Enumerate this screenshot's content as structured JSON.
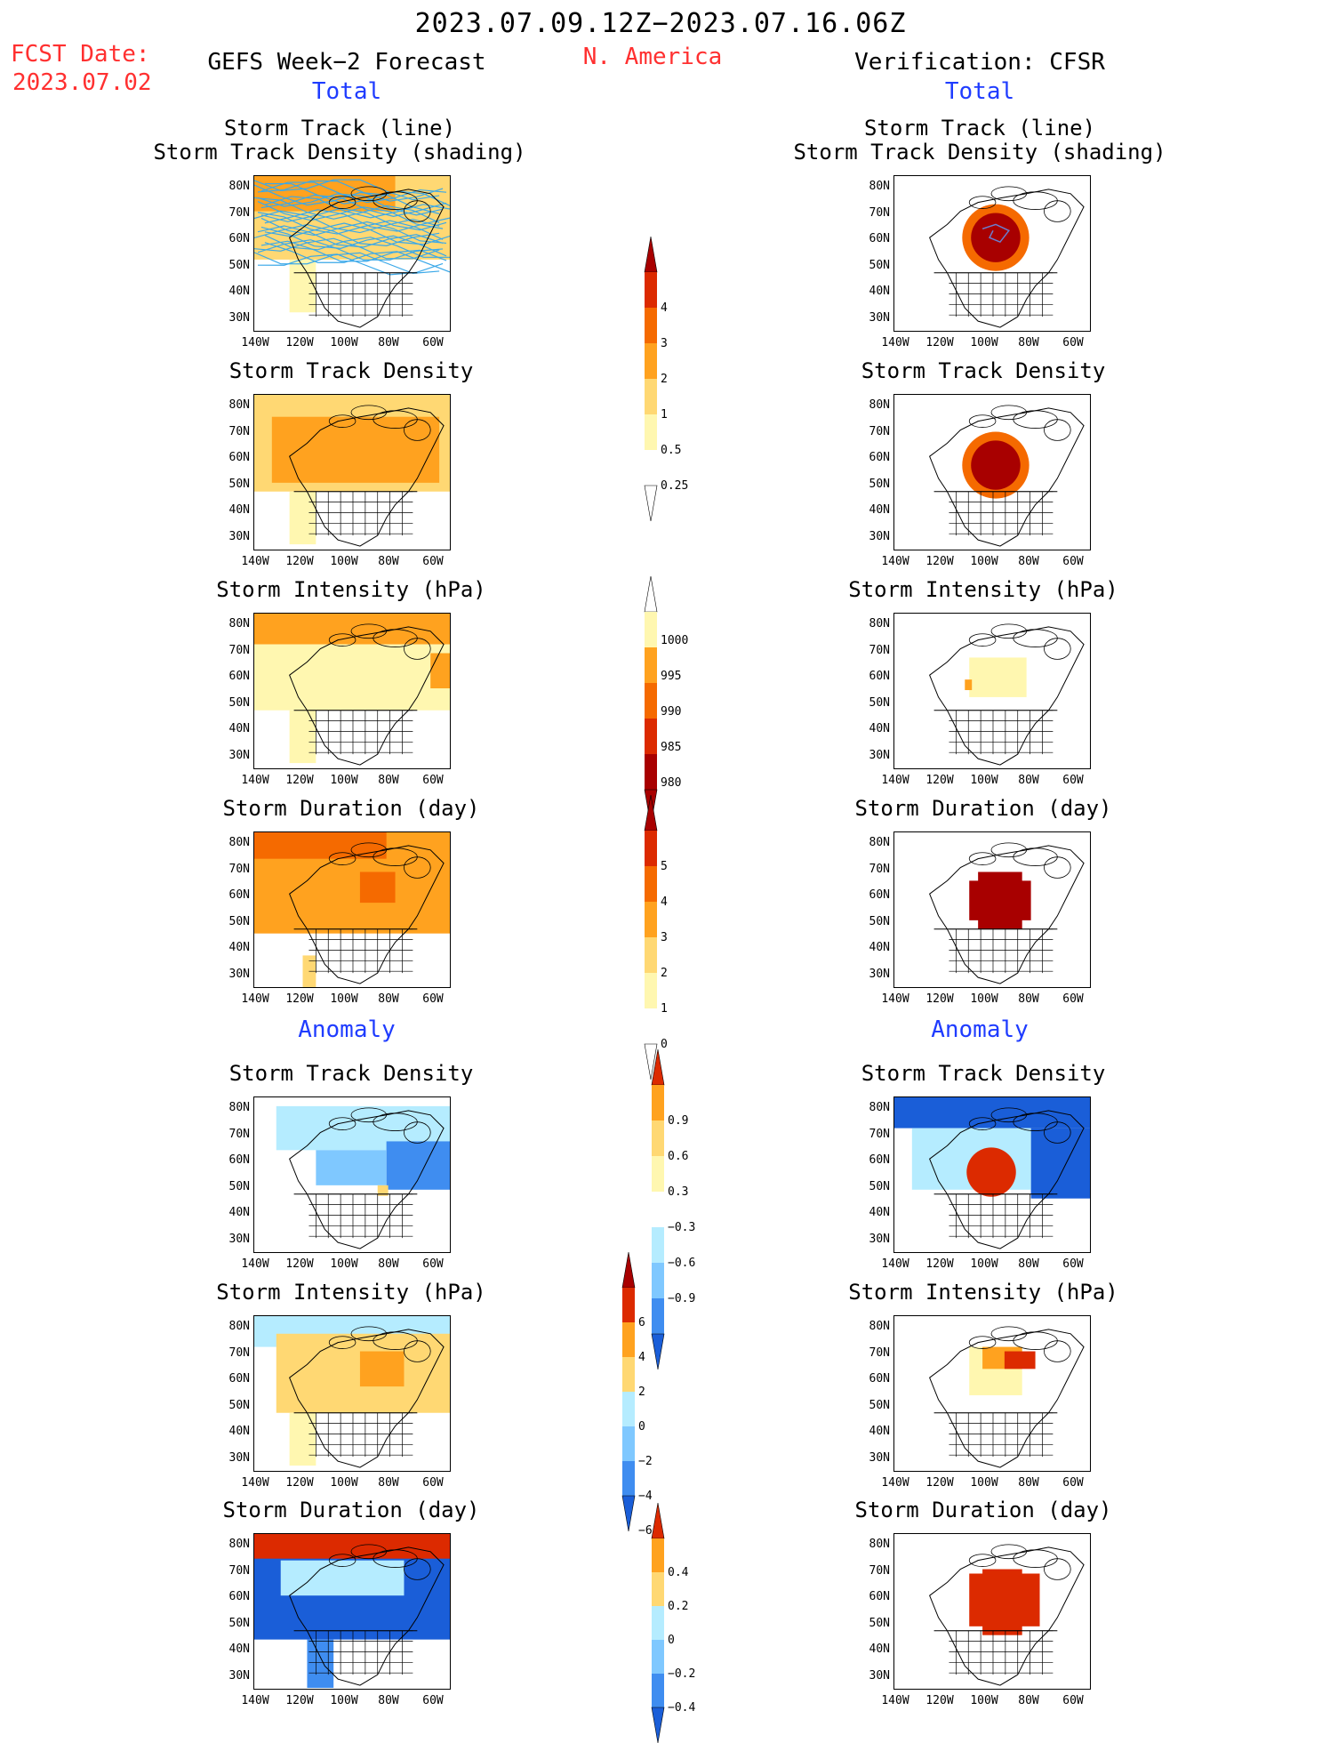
{
  "header": {
    "date_range": "2023.07.09.12Z−2023.07.16.06Z",
    "fcst_label": "FCST Date:",
    "fcst_date": "2023.07.02",
    "left_title": "GEFS Week−2 Forecast",
    "region": "N. America",
    "right_title": "Verification: CFSR",
    "total_left": "Total",
    "total_right": "Total",
    "anomaly_left": "Anomaly",
    "anomaly_right": "Anomaly"
  },
  "axes": {
    "lat_labels": [
      "80N",
      "70N",
      "60N",
      "50N",
      "40N",
      "30N"
    ],
    "lon_labels": [
      "140W",
      "120W",
      "100W",
      "80W",
      "60W"
    ]
  },
  "panels": {
    "p1_title_a": "Storm Track (line)",
    "p1_title_b": "Storm Track Density (shading)",
    "p2_title": "Storm Track Density",
    "p3_title": "Storm Intensity (hPa)",
    "p4_title": "Storm Duration (day)",
    "p5_title": "Storm Track Density",
    "p6_title": "Storm Intensity (hPa)",
    "p7_title": "Storm Duration (day)"
  },
  "colorbars": {
    "density_total": [
      "4",
      "3",
      "2",
      "1",
      "0.5",
      "0.25"
    ],
    "intensity_total": [
      "1000",
      "995",
      "990",
      "985",
      "980"
    ],
    "duration_total": [
      "5",
      "4",
      "3",
      "2",
      "1",
      "0"
    ],
    "density_anom": [
      "0.9",
      "0.6",
      "0.3",
      "−0.3",
      "−0.6",
      "−0.9"
    ],
    "intensity_anom": [
      "6",
      "4",
      "2",
      "0",
      "−2",
      "−4",
      "−6"
    ],
    "duration_anom": [
      "0.4",
      "0.2",
      "0",
      "−0.2",
      "−0.4"
    ]
  },
  "colors": {
    "title_red": "#ff3030",
    "title_blue": "#1f3cff",
    "warm": [
      "#fff7b0",
      "#ffd873",
      "#ffa21f",
      "#f56a00",
      "#dc2a00",
      "#a80000"
    ],
    "cool": [
      "#b5ecff",
      "#7fc8ff",
      "#3f8df0",
      "#1a5ed8"
    ],
    "track_line": "#3aa8e8"
  }
}
